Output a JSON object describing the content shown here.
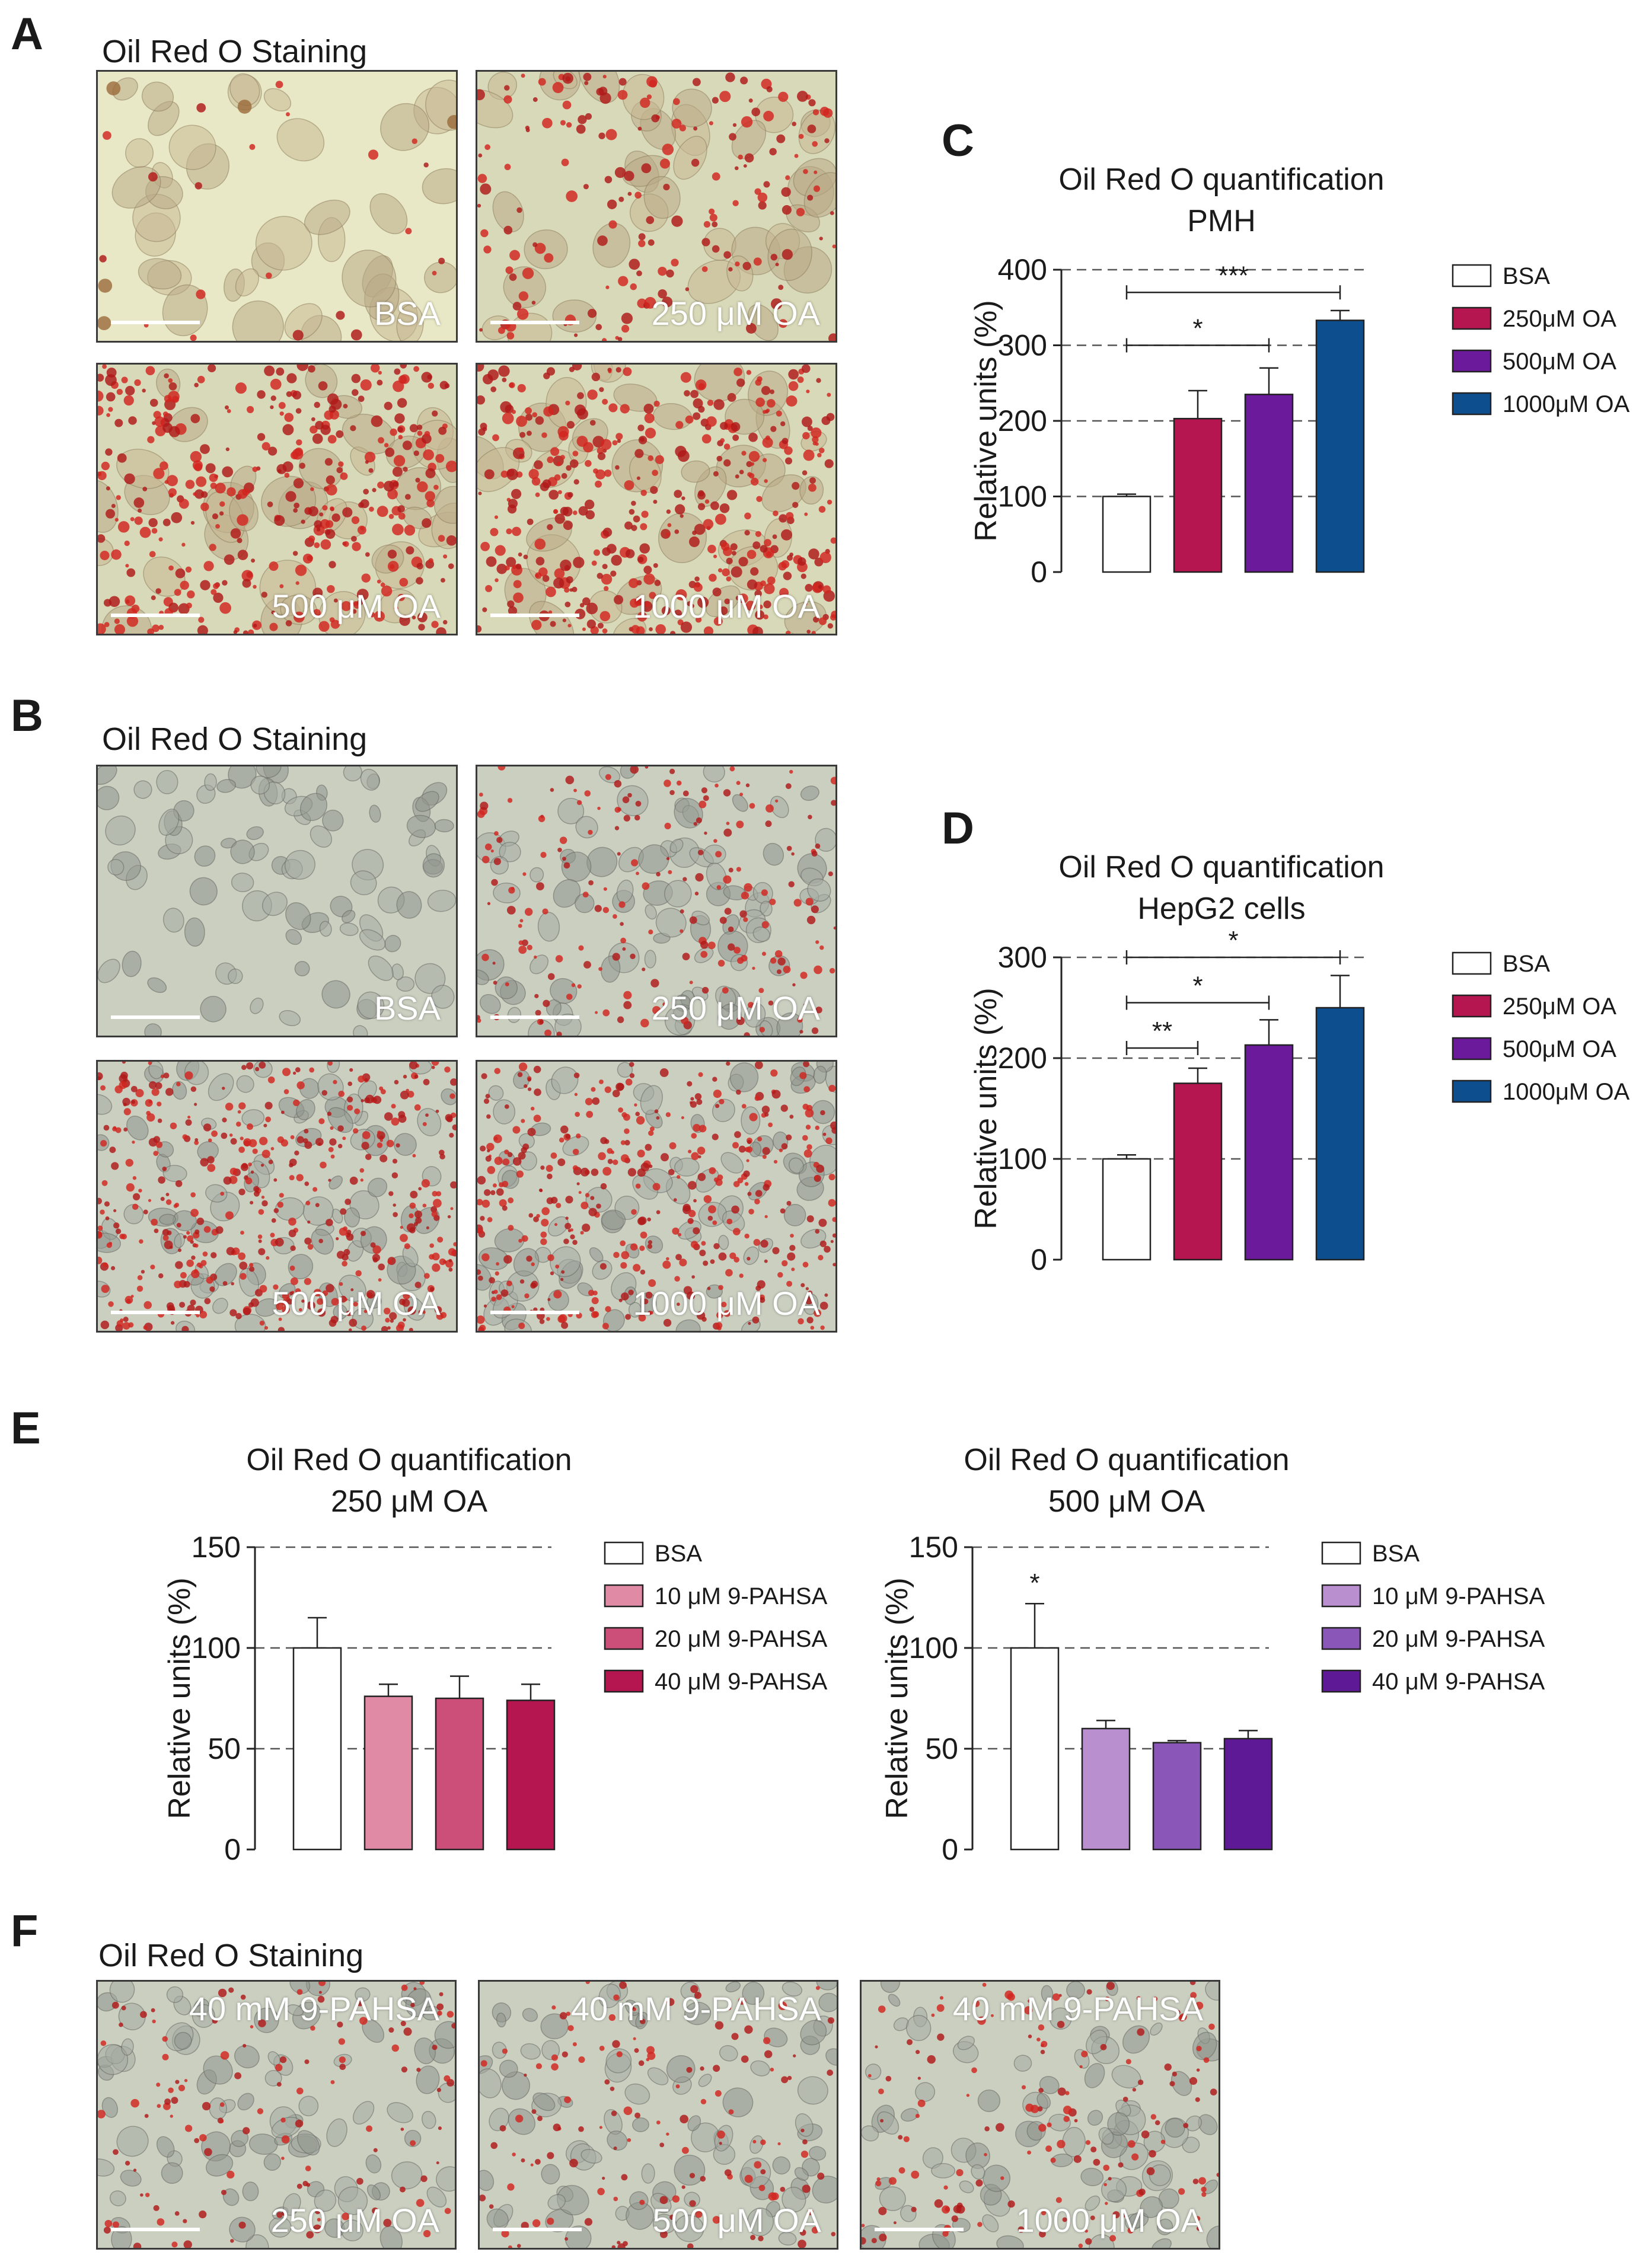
{
  "panels": {
    "A": {
      "letter": "A",
      "heading": "Oil Red O Staining",
      "images": [
        {
          "label": "BSA",
          "scheme": "pmh",
          "lipid": 0.04
        },
        {
          "label": "250 μM OA",
          "scheme": "pmh",
          "lipid": 0.35
        },
        {
          "label": "500 μM OA",
          "scheme": "pmh",
          "lipid": 0.75
        },
        {
          "label": "1000 μM OA",
          "scheme": "pmh",
          "lipid": 0.85
        }
      ]
    },
    "B": {
      "letter": "B",
      "heading": "Oil Red O Staining",
      "images": [
        {
          "label": "BSA",
          "scheme": "hepg2",
          "lipid": 0.0
        },
        {
          "label": "250 μM OA",
          "scheme": "hepg2",
          "lipid": 0.3
        },
        {
          "label": "500 μM OA",
          "scheme": "hepg2",
          "lipid": 0.7
        },
        {
          "label": "1000 μM OA",
          "scheme": "hepg2",
          "lipid": 0.6
        }
      ]
    },
    "C": {
      "letter": "C"
    },
    "D": {
      "letter": "D"
    },
    "E": {
      "letter": "E"
    },
    "F": {
      "letter": "F",
      "heading": "Oil Red O Staining",
      "images": [
        {
          "top_label": "40 mM 9-PAHSA",
          "label": "250 μM OA",
          "scheme": "hepg2",
          "lipid": 0.18
        },
        {
          "top_label": "40 mM 9-PAHSA",
          "label": "500 μM OA",
          "scheme": "hepg2",
          "lipid": 0.2
        },
        {
          "top_label": "40 mM 9-PAHSA",
          "label": "1000 μM OA",
          "scheme": "hepg2",
          "lipid": 0.22
        }
      ]
    }
  },
  "chart_data": [
    {
      "id": "C",
      "type": "bar",
      "title": [
        "Oil Red O quantification",
        "PMH"
      ],
      "ylabel": "Relative units (%)",
      "ylim": [
        0,
        400
      ],
      "yticks": [
        0,
        100,
        200,
        300,
        400
      ],
      "grid_lines": [
        100,
        200,
        300,
        400
      ],
      "categories": [
        "BSA",
        "250μM OA",
        "500μM OA",
        "1000μM OA"
      ],
      "values": [
        100,
        203,
        235,
        333
      ],
      "errors": [
        3,
        37,
        35,
        13
      ],
      "colors": [
        "#ffffff",
        "#b5164f",
        "#6a1a9a",
        "#0d4e8f"
      ],
      "legend": [
        "BSA",
        "250μM OA",
        "500μM OA",
        "1000μM OA"
      ],
      "significance": [
        {
          "from": 0,
          "to": 3,
          "y": 370,
          "label": "***"
        },
        {
          "from": 0,
          "to": 2,
          "y": 300,
          "label": "*"
        }
      ]
    },
    {
      "id": "D",
      "type": "bar",
      "title": [
        "Oil Red O quantification",
        "HepG2 cells"
      ],
      "ylabel": "Relative units (%)",
      "ylim": [
        0,
        300
      ],
      "yticks": [
        0,
        100,
        200,
        300
      ],
      "grid_lines": [
        100,
        200,
        300
      ],
      "categories": [
        "BSA",
        "250μM OA",
        "500μM OA",
        "1000μM OA"
      ],
      "values": [
        100,
        175,
        213,
        250
      ],
      "errors": [
        4,
        15,
        25,
        32
      ],
      "colors": [
        "#ffffff",
        "#b5164f",
        "#6a1a9a",
        "#0d4e8f"
      ],
      "legend": [
        "BSA",
        "250μM OA",
        "500μM OA",
        "1000μM OA"
      ],
      "significance": [
        {
          "from": 0,
          "to": 3,
          "y": 300,
          "label": "*"
        },
        {
          "from": 0,
          "to": 2,
          "y": 255,
          "label": "*"
        },
        {
          "from": 0,
          "to": 1,
          "y": 210,
          "label": "**"
        }
      ]
    },
    {
      "id": "E-250",
      "type": "bar",
      "title": [
        "Oil Red O quantification",
        "250 μM OA"
      ],
      "ylabel": "Relative units (%)",
      "ylim": [
        0,
        150
      ],
      "yticks": [
        0,
        50,
        100,
        150
      ],
      "grid_lines": [
        50,
        100,
        150
      ],
      "categories": [
        "BSA",
        "10 μM 9-PAHSA",
        "20 μM 9-PAHSA",
        "40 μM 9-PAHSA"
      ],
      "values": [
        100,
        76,
        75,
        74
      ],
      "errors": [
        15,
        6,
        11,
        8
      ],
      "colors": [
        "#ffffff",
        "#e08aa6",
        "#cc4f7a",
        "#b5164f"
      ],
      "legend": [
        "BSA",
        "10 μM 9-PAHSA",
        "20 μM 9-PAHSA",
        "40 μM 9-PAHSA"
      ],
      "significance": []
    },
    {
      "id": "E-500",
      "type": "bar",
      "title": [
        "Oil Red O quantification",
        "500 μM OA"
      ],
      "ylabel": "Relative units (%)",
      "ylim": [
        0,
        150
      ],
      "yticks": [
        0,
        50,
        100,
        150
      ],
      "grid_lines": [
        50,
        100,
        150
      ],
      "categories": [
        "BSA",
        "10 μM 9-PAHSA",
        "20 μM 9-PAHSA",
        "40 μM 9-PAHSA"
      ],
      "values": [
        100,
        60,
        53,
        55
      ],
      "errors": [
        22,
        4,
        1,
        4
      ],
      "colors": [
        "#ffffff",
        "#b98fd0",
        "#8a56b8",
        "#5e1a96"
      ],
      "legend": [
        "BSA",
        "10 μM 9-PAHSA",
        "20 μM 9-PAHSA",
        "40 μM 9-PAHSA"
      ],
      "star_above": [
        {
          "index": 0,
          "label": "*"
        }
      ],
      "significance": []
    }
  ]
}
